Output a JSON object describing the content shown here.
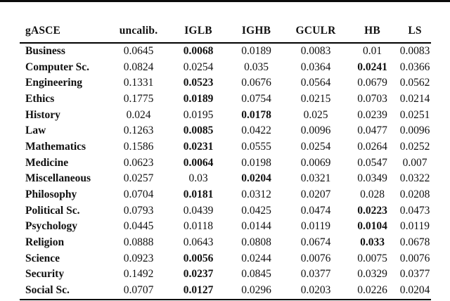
{
  "page": {
    "background": "#ffffff",
    "text_color": "#111111",
    "rule_color": "#000000"
  },
  "table": {
    "columns": [
      "gASCE",
      "uncalib.",
      "IGLB",
      "IGHB",
      "GCULR",
      "HB",
      "LS"
    ],
    "rows": [
      {
        "label": "Business",
        "values": [
          "0.0645",
          "0.0068",
          "0.0189",
          "0.0083",
          "0.01",
          "0.0083"
        ],
        "bold_index": 1
      },
      {
        "label": "Computer Sc.",
        "values": [
          "0.0824",
          "0.0254",
          "0.035",
          "0.0364",
          "0.0241",
          "0.0366"
        ],
        "bold_index": 4
      },
      {
        "label": "Engineering",
        "values": [
          "0.1331",
          "0.0523",
          "0.0676",
          "0.0564",
          "0.0679",
          "0.0562"
        ],
        "bold_index": 1
      },
      {
        "label": "Ethics",
        "values": [
          "0.1775",
          "0.0189",
          "0.0754",
          "0.0215",
          "0.0703",
          "0.0214"
        ],
        "bold_index": 1
      },
      {
        "label": "History",
        "values": [
          "0.024",
          "0.0195",
          "0.0178",
          "0.025",
          "0.0239",
          "0.0251"
        ],
        "bold_index": 2
      },
      {
        "label": "Law",
        "values": [
          "0.1263",
          "0.0085",
          "0.0422",
          "0.0096",
          "0.0477",
          "0.0096"
        ],
        "bold_index": 1
      },
      {
        "label": "Mathematics",
        "values": [
          "0.1586",
          "0.0231",
          "0.0555",
          "0.0254",
          "0.0264",
          "0.0252"
        ],
        "bold_index": 1
      },
      {
        "label": "Medicine",
        "values": [
          "0.0623",
          "0.0064",
          "0.0198",
          "0.0069",
          "0.0547",
          "0.007"
        ],
        "bold_index": 1
      },
      {
        "label": "Miscellaneous",
        "values": [
          "0.0257",
          "0.03",
          "0.0204",
          "0.0321",
          "0.0349",
          "0.0322"
        ],
        "bold_index": 2
      },
      {
        "label": "Philosophy",
        "values": [
          "0.0704",
          "0.0181",
          "0.0312",
          "0.0207",
          "0.028",
          "0.0208"
        ],
        "bold_index": 1
      },
      {
        "label": "Political Sc.",
        "values": [
          "0.0793",
          "0.0439",
          "0.0425",
          "0.0474",
          "0.0223",
          "0.0473"
        ],
        "bold_index": 4
      },
      {
        "label": "Psychology",
        "values": [
          "0.0445",
          "0.0118",
          "0.0144",
          "0.0119",
          "0.0104",
          "0.0119"
        ],
        "bold_index": 4
      },
      {
        "label": "Religion",
        "values": [
          "0.0888",
          "0.0643",
          "0.0808",
          "0.0674",
          "0.033",
          "0.0678"
        ],
        "bold_index": 4
      },
      {
        "label": "Science",
        "values": [
          "0.0923",
          "0.0056",
          "0.0244",
          "0.0076",
          "0.0075",
          "0.0076"
        ],
        "bold_index": 1
      },
      {
        "label": "Security",
        "values": [
          "0.1492",
          "0.0237",
          "0.0845",
          "0.0377",
          "0.0329",
          "0.0377"
        ],
        "bold_index": 1
      },
      {
        "label": "Social Sc.",
        "values": [
          "0.0707",
          "0.0127",
          "0.0296",
          "0.0203",
          "0.0226",
          "0.0204"
        ],
        "bold_index": 1
      }
    ]
  }
}
